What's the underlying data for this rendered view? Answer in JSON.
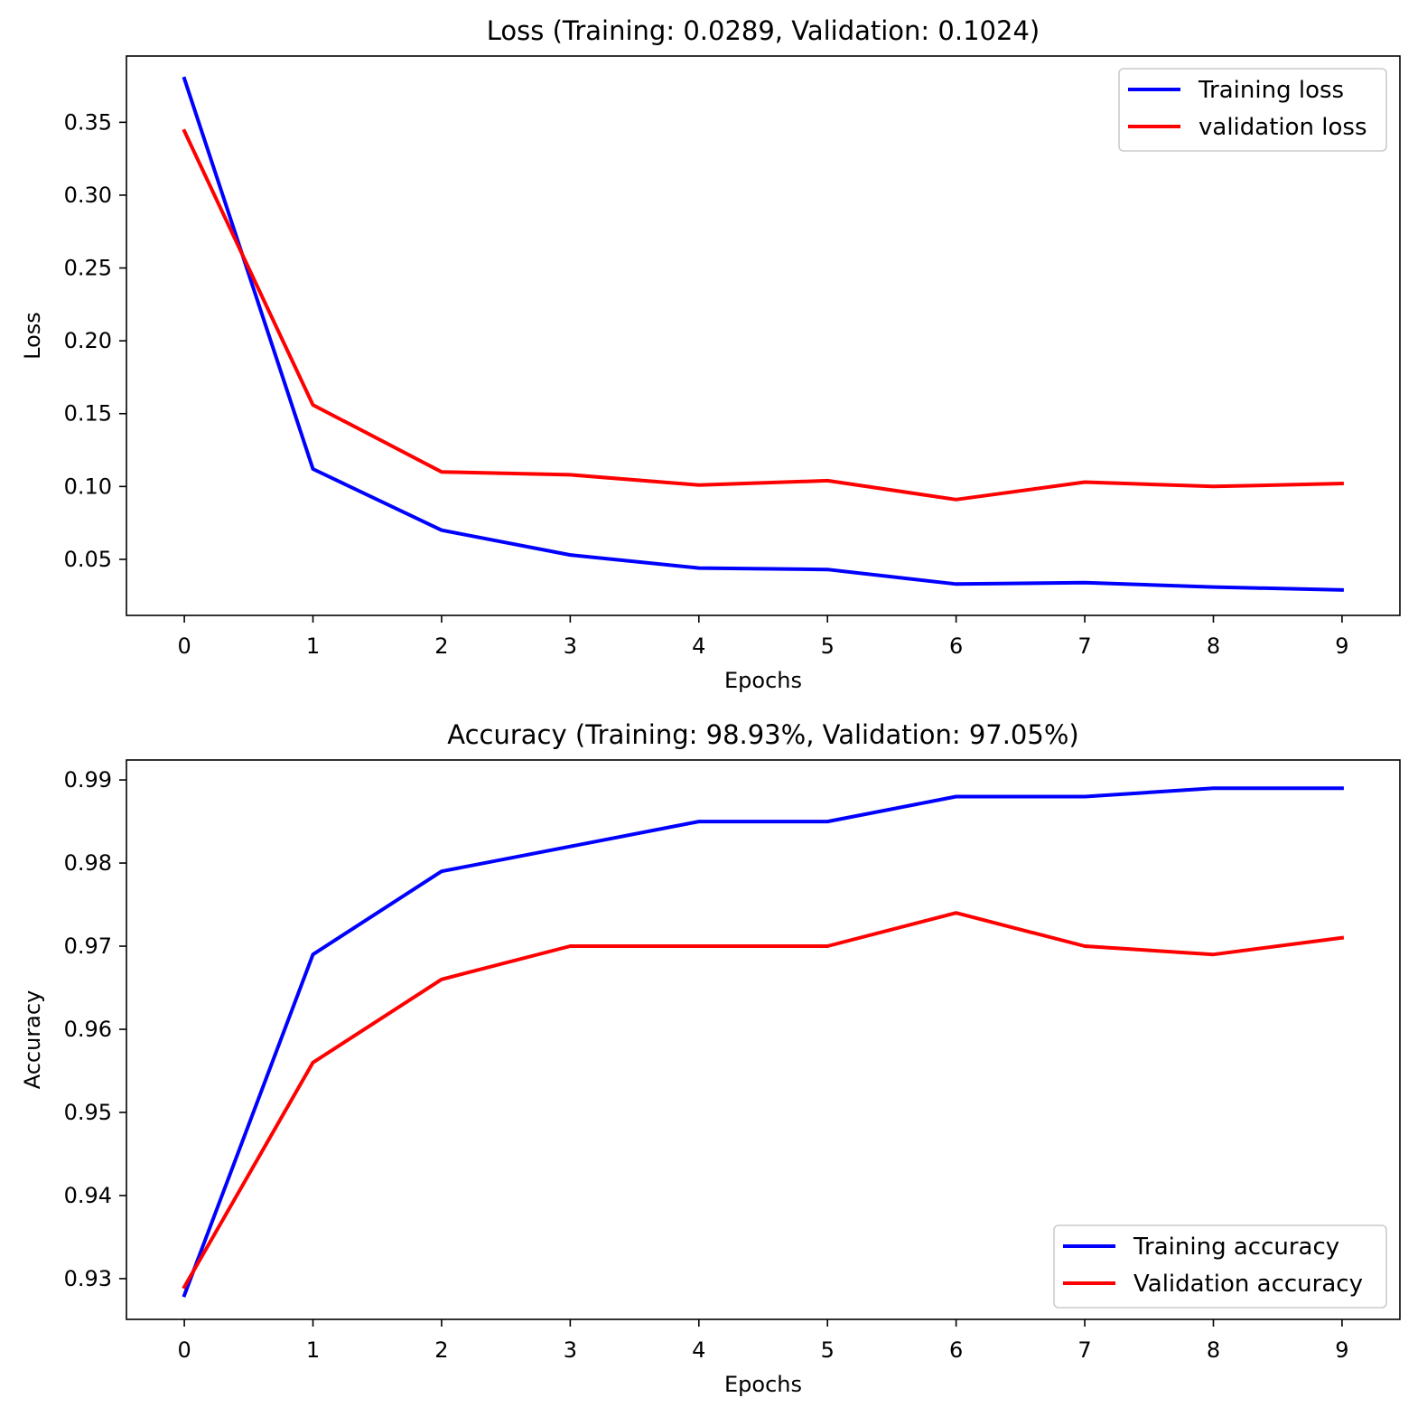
{
  "chart_data": [
    {
      "type": "line",
      "title": "Loss (Training: 0.0289, Validation: 0.1024)",
      "xlabel": "Epochs",
      "ylabel": "Loss",
      "x": [
        0,
        1,
        2,
        3,
        4,
        5,
        6,
        7,
        8,
        9
      ],
      "xticks": [
        "0",
        "1",
        "2",
        "3",
        "4",
        "5",
        "6",
        "7",
        "8",
        "9"
      ],
      "yticks": [
        "0.05",
        "0.10",
        "0.15",
        "0.20",
        "0.25",
        "0.30",
        "0.35"
      ],
      "ytick_values": [
        0.05,
        0.1,
        0.15,
        0.2,
        0.25,
        0.3,
        0.35
      ],
      "xlim": [
        -0.45,
        9.45
      ],
      "ylim": [
        0.0115,
        0.3955
      ],
      "grid": false,
      "legend_position": "top-right",
      "series": [
        {
          "name": "Training loss",
          "color": "#0000ff",
          "values": [
            0.38,
            0.112,
            0.07,
            0.053,
            0.044,
            0.043,
            0.033,
            0.034,
            0.031,
            0.029
          ]
        },
        {
          "name": "validation loss",
          "color": "#ff0000",
          "values": [
            0.344,
            0.156,
            0.11,
            0.108,
            0.101,
            0.104,
            0.091,
            0.103,
            0.1,
            0.102
          ]
        }
      ]
    },
    {
      "type": "line",
      "title": "Accuracy (Training: 98.93%, Validation: 97.05%)",
      "xlabel": "Epochs",
      "ylabel": "Accuracy",
      "x": [
        0,
        1,
        2,
        3,
        4,
        5,
        6,
        7,
        8,
        9
      ],
      "xticks": [
        "0",
        "1",
        "2",
        "3",
        "4",
        "5",
        "6",
        "7",
        "8",
        "9"
      ],
      "yticks": [
        "0.93",
        "0.94",
        "0.95",
        "0.96",
        "0.97",
        "0.98",
        "0.99"
      ],
      "ytick_values": [
        0.93,
        0.94,
        0.95,
        0.96,
        0.97,
        0.98,
        0.99
      ],
      "xlim": [
        -0.45,
        9.45
      ],
      "ylim": [
        0.9251,
        0.9924
      ],
      "grid": false,
      "legend_position": "bottom-right",
      "series": [
        {
          "name": "Training accuracy",
          "color": "#0000ff",
          "values": [
            0.928,
            0.969,
            0.979,
            0.982,
            0.985,
            0.985,
            0.988,
            0.988,
            0.989,
            0.989
          ]
        },
        {
          "name": "Validation accuracy",
          "color": "#ff0000",
          "values": [
            0.929,
            0.956,
            0.966,
            0.97,
            0.97,
            0.97,
            0.974,
            0.97,
            0.969,
            0.971
          ]
        }
      ]
    }
  ]
}
